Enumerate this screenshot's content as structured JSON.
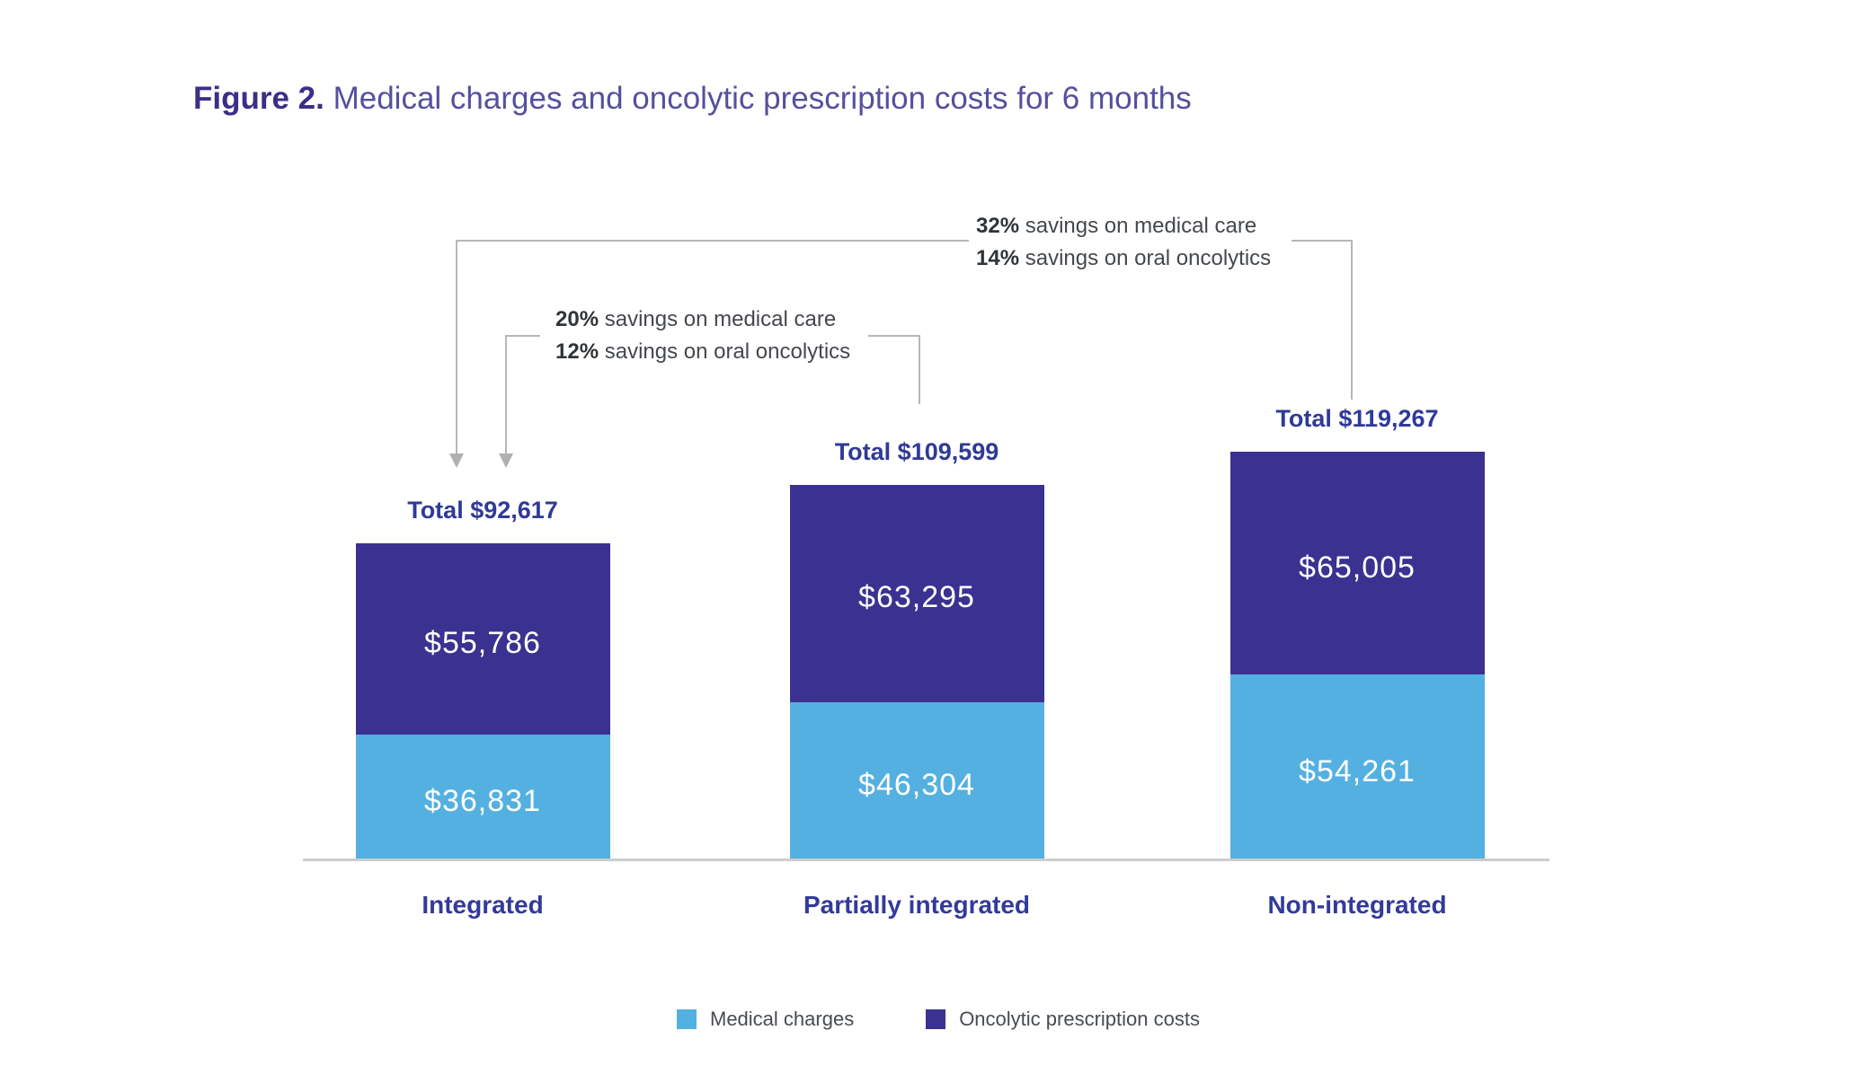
{
  "title": {
    "prefix": "Figure 2.",
    "text": " Medical charges and oncolytic prescription costs for 6 months"
  },
  "annotations": [
    {
      "target": "non-integrated-vs-integrated",
      "lines": [
        {
          "pct": "32%",
          "rest": " savings on medical care"
        },
        {
          "pct": "14%",
          "rest": " savings on oral oncolytics"
        }
      ]
    },
    {
      "target": "partially-integrated-vs-integrated",
      "lines": [
        {
          "pct": "20%",
          "rest": " savings on medical care"
        },
        {
          "pct": "12%",
          "rest": " savings on oral oncolytics"
        }
      ]
    }
  ],
  "chart_data": {
    "type": "bar",
    "stacked": true,
    "title": "Figure 2. Medical charges and oncolytic prescription costs for 6 months",
    "categories": [
      "Integrated",
      "Partially integrated",
      "Non-integrated"
    ],
    "series": [
      {
        "name": "Medical charges",
        "color": "#54b0e1",
        "values": [
          36831,
          46304,
          54261
        ]
      },
      {
        "name": "Oncolytic prescription costs",
        "color": "#3a3190",
        "values": [
          55786,
          63295,
          65005
        ]
      }
    ],
    "totals": [
      92617,
      109599,
      119267
    ],
    "total_labels": [
      "Total $92,617",
      "Total $109,599",
      "Total $119,267"
    ],
    "value_labels": [
      [
        "$36,831",
        "$46,304",
        "$54,261"
      ],
      [
        "$55,786",
        "$63,295",
        "$65,005"
      ]
    ],
    "xlabel": "",
    "ylabel": "",
    "y_axis_visible": false,
    "grid": false,
    "legend_position": "bottom",
    "baseline_color": "#cbcdce",
    "connector_line_color": "#b5b7b9",
    "total_label_color": "#2f3a97",
    "category_label_color": "#333a9a"
  },
  "legend": {
    "items": [
      {
        "label": "Medical charges",
        "color": "#54b0e1"
      },
      {
        "label": "Oncolytic prescription costs",
        "color": "#3a3190"
      }
    ]
  }
}
